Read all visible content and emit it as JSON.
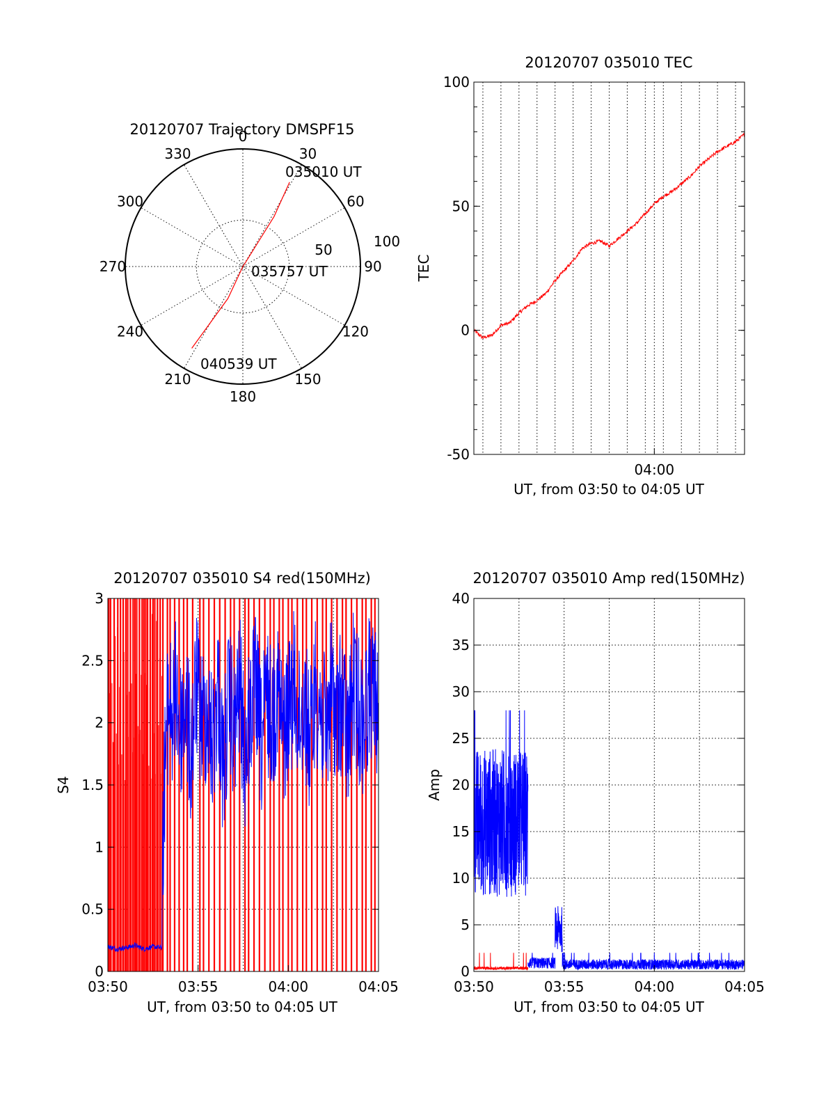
{
  "colors": {
    "red": "#ff0000",
    "blue": "#0000ff",
    "axis": "#000000",
    "background": "#ffffff"
  },
  "chart_data": [
    {
      "id": "trajectory",
      "type": "polar",
      "title": "20120707 Trajectory DMSPF15",
      "azimuth_ticks": [
        0,
        30,
        60,
        90,
        120,
        150,
        180,
        210,
        240,
        270,
        300,
        330
      ],
      "radial_ticks": [
        50,
        100
      ],
      "radial_range": [
        0,
        100
      ],
      "grid": true,
      "series": [
        {
          "color": "red",
          "azimuth_deg": [
            29,
            32,
            34,
            180,
            205,
            212
          ],
          "distance": [
            82,
            50,
            3,
            0,
            30,
            82
          ]
        }
      ],
      "annotations": [
        {
          "text": "035010 UT",
          "azimuth_deg": 36,
          "distance": 92
        },
        {
          "text": "035757 UT",
          "azimuth_deg": 90,
          "distance": 12
        },
        {
          "text": "040539 UT",
          "azimuth_deg": 198,
          "distance": 90
        }
      ]
    },
    {
      "id": "tec",
      "type": "line",
      "title": "20120707 035010 TEC",
      "xlabel": "UT, from 03:50 to 04:05 UT",
      "ylabel": "TEC",
      "xlim_minutes": [
        0,
        15
      ],
      "ylim": [
        -50,
        100
      ],
      "yticks": [
        -50,
        0,
        50,
        100
      ],
      "xticks": [
        {
          "minute": 10,
          "label": "04:00"
        }
      ],
      "grid": true,
      "series": [
        {
          "color": "red",
          "x_minutes": [
            0,
            0.5,
            1,
            1.5,
            2,
            2.5,
            3,
            3.5,
            4,
            4.5,
            5,
            5.5,
            6,
            6.5,
            7,
            7.5,
            8,
            8.5,
            9,
            9.5,
            10,
            10.5,
            11,
            11.5,
            12,
            12.5,
            13,
            13.5,
            14,
            14.5,
            15
          ],
          "values": [
            0,
            -3,
            -2,
            2,
            3,
            7,
            10,
            12,
            15,
            20,
            24,
            28,
            33,
            35,
            36,
            34,
            37,
            40,
            43,
            47,
            51,
            54,
            56,
            59,
            62,
            66,
            69,
            72,
            74,
            76,
            79
          ]
        }
      ]
    },
    {
      "id": "s4",
      "type": "line",
      "title": "20120707 035010 S4 red(150MHz)",
      "xlabel": "UT, from 03:50 to 04:05 UT",
      "ylabel": "S4",
      "xlim_minutes": [
        0,
        15
      ],
      "ylim": [
        0,
        3
      ],
      "yticks": [
        0,
        0.5,
        1,
        1.5,
        2,
        2.5,
        3
      ],
      "ytick_labels": [
        "0",
        "0.5",
        "1",
        "1.5",
        "2",
        "2.5",
        "3"
      ],
      "xticks": [
        {
          "minute": 0,
          "label": "03:50"
        },
        {
          "minute": 5,
          "label": "03:55"
        },
        {
          "minute": 10,
          "label": "04:00"
        },
        {
          "minute": 15,
          "label": "04:05"
        }
      ],
      "grid": true,
      "red_spike_minutes": [
        0.05,
        0.15,
        0.35,
        0.55,
        0.7,
        0.85,
        1.0,
        1.1,
        1.25,
        1.4,
        1.5,
        1.6,
        1.75,
        1.9,
        2.0,
        2.1,
        2.2,
        2.35,
        2.5,
        2.6,
        2.75,
        2.9,
        3.05,
        3.3,
        3.45,
        3.7,
        3.95,
        4.2,
        4.4,
        4.7,
        5.1,
        5.3,
        5.6,
        5.9,
        6.2,
        6.5,
        6.8,
        7.0,
        7.3,
        7.6,
        7.8,
        8.1,
        8.4,
        8.7,
        9.0,
        9.2,
        9.5,
        9.7,
        10.0,
        10.2,
        10.5,
        10.8,
        11.0,
        11.3,
        11.6,
        11.9,
        12.1,
        12.4,
        12.7,
        13.0,
        13.2,
        13.5,
        13.8,
        14.1,
        14.3,
        14.6,
        14.8
      ],
      "blue_series": {
        "color": "blue",
        "x_minutes": [
          0,
          0.5,
          1,
          1.5,
          2,
          2.5,
          3,
          3.05,
          3.2,
          3.4,
          3.6,
          3.8,
          4.0,
          4.3,
          4.6,
          4.9,
          5.2,
          5.5,
          5.8,
          6.1,
          6.4,
          6.7,
          7.0,
          7.3,
          7.6,
          7.9,
          8.2,
          8.5,
          8.8,
          9.1,
          9.4,
          9.7,
          10.0,
          10.3,
          10.6,
          10.9,
          11.2,
          11.5,
          11.8,
          12.1,
          12.4,
          12.7,
          13.0,
          13.3,
          13.6,
          13.9,
          14.2,
          14.5,
          14.8,
          15
        ],
        "values": [
          0.2,
          0.18,
          0.19,
          0.21,
          0.18,
          0.2,
          0.19,
          1.7,
          2.4,
          2.8,
          2.6,
          2.9,
          2.5,
          2.8,
          2.3,
          2.9,
          2.6,
          2.7,
          2.4,
          2.9,
          2.2,
          2.8,
          2.5,
          2.9,
          2.3,
          2.7,
          2.9,
          2.4,
          2.8,
          2.6,
          2.9,
          2.5,
          2.7,
          2.9,
          2.6,
          2.8,
          2.4,
          2.9,
          2.7,
          2.5,
          2.9,
          2.6,
          2.8,
          2.4,
          2.9,
          2.7,
          2.6,
          2.9,
          2.8,
          2.7
        ]
      }
    },
    {
      "id": "amp",
      "type": "line",
      "title": "20120707 035010 Amp red(150MHz)",
      "xlabel": "UT, from 03:50 to 04:05 UT",
      "ylabel": "Amp",
      "xlim_minutes": [
        0,
        15
      ],
      "ylim": [
        0,
        40
      ],
      "yticks": [
        0,
        5,
        10,
        15,
        20,
        25,
        30,
        35,
        40
      ],
      "xticks": [
        {
          "minute": 0,
          "label": "03:50"
        },
        {
          "minute": 5,
          "label": "03:55"
        },
        {
          "minute": 10,
          "label": "04:00"
        },
        {
          "minute": 15,
          "label": "04:05"
        }
      ],
      "grid": true,
      "segments": [
        {
          "color": "blue",
          "x_range_minutes": [
            0,
            3.0
          ],
          "min": 8,
          "max": 24,
          "peak": 28
        },
        {
          "color": "blue",
          "x_range_minutes": [
            3.0,
            4.5
          ],
          "min": 0.3,
          "max": 1.5,
          "peak": 2
        },
        {
          "color": "blue",
          "x_range_minutes": [
            4.5,
            4.9
          ],
          "min": 2,
          "max": 7,
          "peak": 8
        },
        {
          "color": "blue",
          "x_range_minutes": [
            4.9,
            15
          ],
          "min": 0.2,
          "max": 1.3,
          "peak": 2
        },
        {
          "color": "red",
          "x_range_minutes": [
            0,
            3.0
          ],
          "min": 0.2,
          "max": 0.5,
          "peak": 2
        }
      ]
    }
  ]
}
